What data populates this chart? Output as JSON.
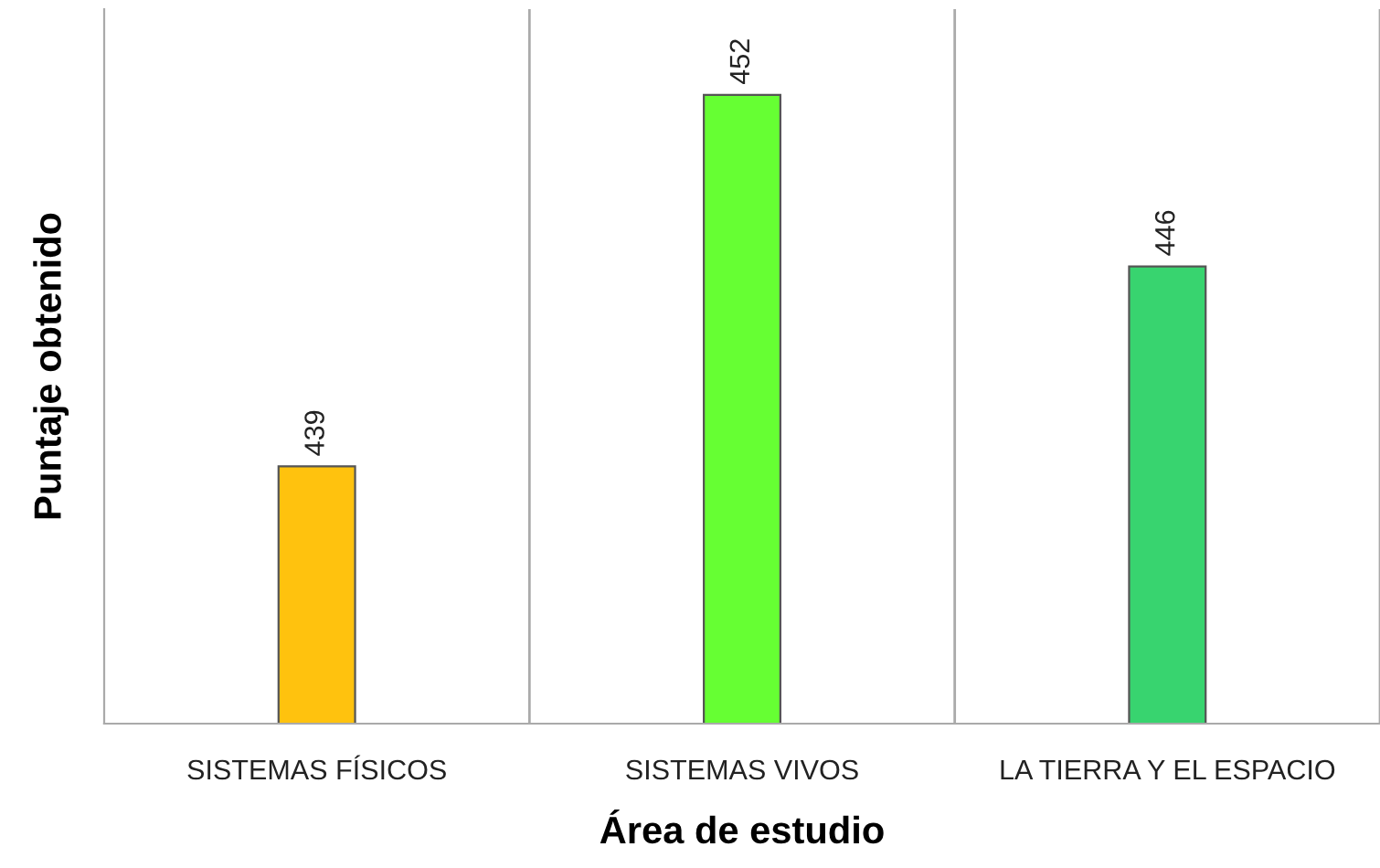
{
  "chart_data": {
    "type": "bar",
    "xlabel": "Área de estudio",
    "ylabel": "Puntaje obtenido",
    "categories": [
      "SISTEMAS FÍSICOS",
      "SISTEMAS VIVOS",
      "LA TIERRA Y EL ESPACIO"
    ],
    "values": [
      439,
      452,
      446
    ],
    "colors": [
      "#ffc20e",
      "#66ff33",
      "#38d46f"
    ],
    "ylim": [
      430,
      455
    ],
    "data_labels": true,
    "grid": "x"
  }
}
